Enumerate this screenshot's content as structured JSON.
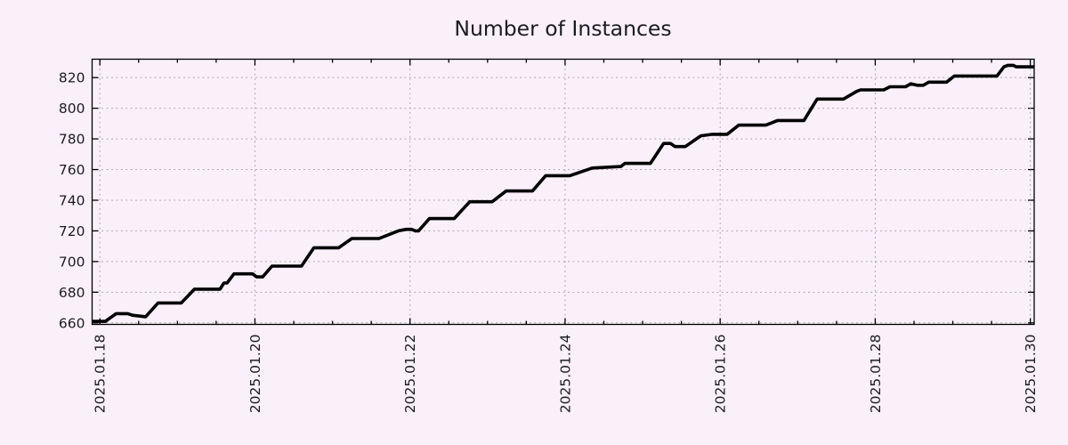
{
  "page": {
    "background_color": "#faf0fa",
    "text_color": "#1b1b24"
  },
  "chart_data": {
    "type": "line",
    "title": "Number of Instances",
    "xlabel": "",
    "ylabel": "",
    "grid": true,
    "legend": "none",
    "line_color": "#000000",
    "grid_color": "#a3a3a3",
    "axis_color": "#000000",
    "x_axis": {
      "tick_labels": [
        "2025.01.18",
        "2025.01.20",
        "2025.01.22",
        "2025.01.24",
        "2025.01.26",
        "2025.01.28",
        "2025.01.30"
      ],
      "tick_positions_days": [
        0,
        2,
        4,
        6,
        8,
        10,
        12
      ],
      "minor_tick_interval_days": 0.5,
      "range_days": [
        -0.1,
        12.05
      ],
      "labels_rotated_degrees": -90
    },
    "y_axis": {
      "ticks": [
        660,
        680,
        700,
        720,
        740,
        760,
        780,
        800,
        820
      ],
      "range": [
        659,
        832
      ]
    },
    "series": [
      {
        "name": "instances",
        "points_day_value": [
          [
            -0.1,
            661
          ],
          [
            0.07,
            661
          ],
          [
            0.21,
            666
          ],
          [
            0.36,
            666
          ],
          [
            0.42,
            665
          ],
          [
            0.59,
            664
          ],
          [
            0.75,
            673
          ],
          [
            1.05,
            673
          ],
          [
            1.22,
            682
          ],
          [
            1.55,
            682
          ],
          [
            1.6,
            686
          ],
          [
            1.64,
            686
          ],
          [
            1.73,
            692
          ],
          [
            1.97,
            692
          ],
          [
            2.02,
            690
          ],
          [
            2.1,
            690
          ],
          [
            2.22,
            697
          ],
          [
            2.6,
            697
          ],
          [
            2.76,
            709
          ],
          [
            3.08,
            709
          ],
          [
            3.25,
            715
          ],
          [
            3.6,
            715
          ],
          [
            3.85,
            720
          ],
          [
            3.95,
            721
          ],
          [
            4.02,
            721
          ],
          [
            4.07,
            720
          ],
          [
            4.11,
            720
          ],
          [
            4.25,
            728
          ],
          [
            4.57,
            728
          ],
          [
            4.77,
            739
          ],
          [
            5.06,
            739
          ],
          [
            5.24,
            746
          ],
          [
            5.58,
            746
          ],
          [
            5.75,
            756
          ],
          [
            6.06,
            756
          ],
          [
            6.35,
            761
          ],
          [
            6.72,
            762
          ],
          [
            6.77,
            764
          ],
          [
            7.1,
            764
          ],
          [
            7.27,
            777
          ],
          [
            7.36,
            777
          ],
          [
            7.42,
            775
          ],
          [
            7.55,
            775
          ],
          [
            7.75,
            782
          ],
          [
            7.9,
            783
          ],
          [
            8.09,
            783
          ],
          [
            8.24,
            789
          ],
          [
            8.59,
            789
          ],
          [
            8.74,
            792
          ],
          [
            9.08,
            792
          ],
          [
            9.25,
            806
          ],
          [
            9.59,
            806
          ],
          [
            9.76,
            811
          ],
          [
            9.81,
            812
          ],
          [
            10.11,
            812
          ],
          [
            10.19,
            814
          ],
          [
            10.39,
            814
          ],
          [
            10.46,
            816
          ],
          [
            10.54,
            815
          ],
          [
            10.62,
            815
          ],
          [
            10.69,
            817
          ],
          [
            10.92,
            817
          ],
          [
            11.02,
            821
          ],
          [
            11.57,
            821
          ],
          [
            11.66,
            827
          ],
          [
            11.71,
            828
          ],
          [
            11.78,
            828
          ],
          [
            11.82,
            827
          ],
          [
            12.05,
            827
          ]
        ]
      }
    ]
  }
}
